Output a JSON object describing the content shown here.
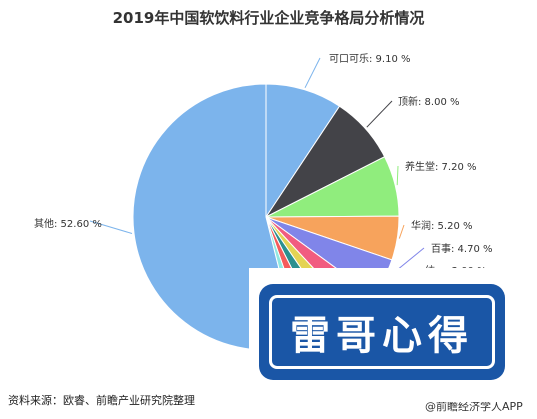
{
  "chart_data": {
    "type": "pie",
    "title": "2019年中国软饮料行业企业竞争格局分析情况",
    "slices": [
      {
        "name": "可口可乐",
        "value": 9.1,
        "label": "可口可乐: 9.10 %",
        "color": "#7cb4ec"
      },
      {
        "name": "顶新",
        "value": 8.0,
        "label": "顶新: 8.00 %",
        "color": "#434348"
      },
      {
        "name": "养生堂",
        "value": 7.2,
        "label": "养生堂: 7.20 %",
        "color": "#90ed7d"
      },
      {
        "name": "华润",
        "value": 5.2,
        "label": "华润: 5.20 %",
        "color": "#f7a35c"
      },
      {
        "name": "百事",
        "value": 4.7,
        "label": "百事: 4.70 %",
        "color": "#8085e9"
      },
      {
        "name": "统一",
        "value": 3.0,
        "label": "统一: 3.00 %",
        "color": "#f15c80"
      },
      {
        "name": "slice-7",
        "value": 2.3,
        "label": "",
        "color": "#e4d354"
      },
      {
        "name": "slice-8",
        "value": 2.1,
        "label": "",
        "color": "#2b908f"
      },
      {
        "name": "slice-9",
        "value": 2.0,
        "label": "",
        "color": "#f45b5b"
      },
      {
        "name": "slice-10",
        "value": 1.4,
        "label": "",
        "color": "#91e8e1"
      },
      {
        "name": "其他",
        "value": 52.6,
        "label": "其他: 52.60 %",
        "color": "#7cb4ec"
      }
    ]
  },
  "source": "资料来源：欧睿、前瞻产业研究院整理",
  "brand_partial": "@前瞻经济学人APP",
  "stamp_text": "雷哥心得"
}
